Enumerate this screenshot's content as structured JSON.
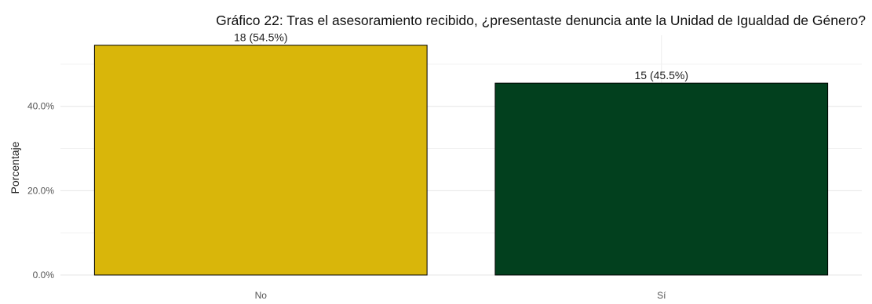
{
  "chart_data": {
    "type": "bar",
    "title": "Gráfico 22: Tras el asesoramiento recibido, ¿presentaste denuncia ante la Unidad de Igualdad de Género?",
    "xlabel": "",
    "ylabel": "Porcentaje",
    "categories": [
      "No",
      "Sí"
    ],
    "counts": [
      18,
      15
    ],
    "values": [
      54.5,
      45.5
    ],
    "data_labels": [
      "18 (54.5%)",
      "15 (45.5%)"
    ],
    "colors": [
      "#D9B60A",
      "#02401E"
    ],
    "y_ticks": [
      0,
      20,
      40
    ],
    "y_tick_labels": [
      "0.0%",
      "20.0%",
      "40.0%"
    ],
    "ylim": [
      0,
      55
    ],
    "grid": true,
    "legend": "none"
  }
}
